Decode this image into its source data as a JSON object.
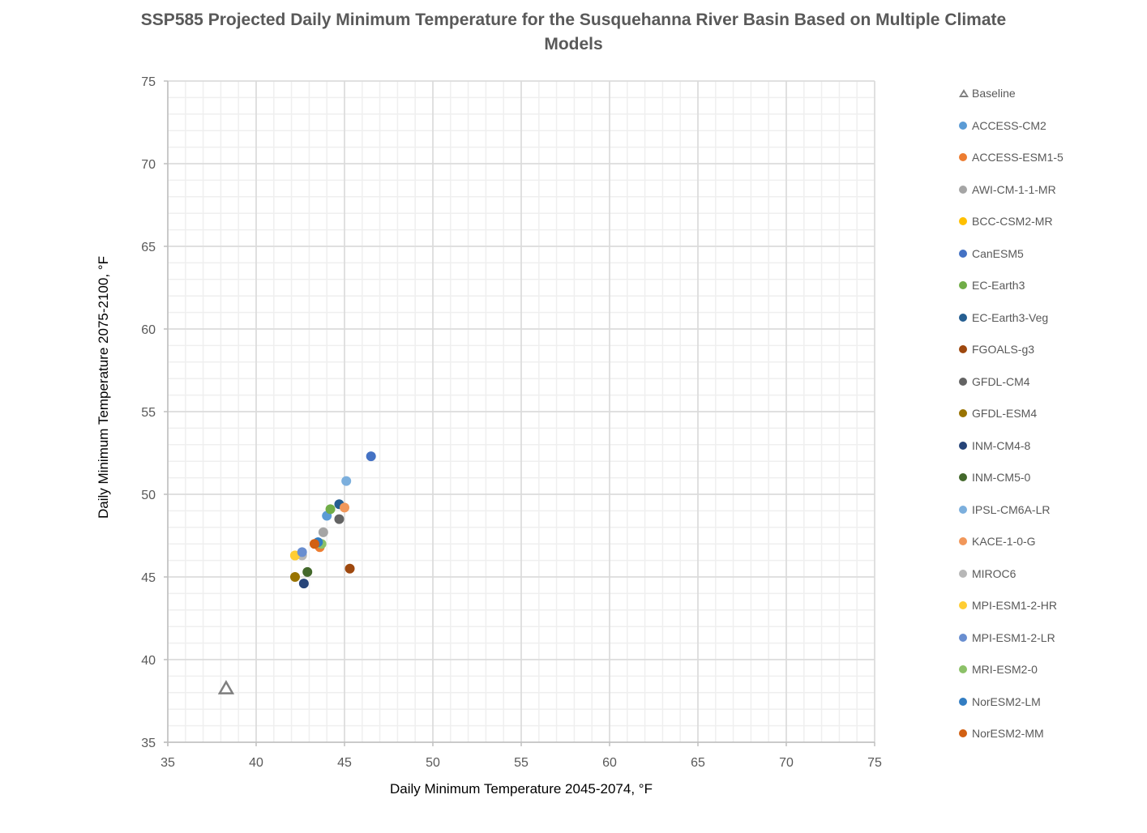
{
  "chart_data": {
    "type": "scatter",
    "title": "SSP585 Projected Daily Minimum Temperature for the Susquehanna River Basin Based on Multiple Climate Models",
    "xlabel": "Daily Minimum Temperature  2045-2074, °F",
    "ylabel": "Daily Minimum Temperature 2075-2100, °F",
    "xlim": [
      35,
      75
    ],
    "ylim": [
      35,
      75
    ],
    "x_ticks": [
      35,
      40,
      45,
      50,
      55,
      60,
      65,
      70,
      75
    ],
    "y_ticks": [
      35,
      40,
      45,
      50,
      55,
      60,
      65,
      70,
      75
    ],
    "grid": {
      "major": true,
      "minor": true,
      "minor_step": 1
    },
    "legend_position": "right",
    "series": [
      {
        "name": "Baseline",
        "marker": "triangle-open",
        "color": "#7f7f7f",
        "x": 38.3,
        "y": 38.3
      },
      {
        "name": "ACCESS-CM2",
        "marker": "circle",
        "color": "#5b9bd5",
        "x": 44.0,
        "y": 48.7
      },
      {
        "name": "ACCESS-ESM1-5",
        "marker": "circle",
        "color": "#ed7d31",
        "x": 43.6,
        "y": 46.8
      },
      {
        "name": "AWI-CM-1-1-MR",
        "marker": "circle",
        "color": "#a5a5a5",
        "x": 43.8,
        "y": 47.7
      },
      {
        "name": "BCC-CSM2-MR",
        "marker": "circle",
        "color": "#ffc000",
        "x": 42.2,
        "y": 46.3
      },
      {
        "name": "CanESM5",
        "marker": "circle",
        "color": "#4472c4",
        "x": 46.5,
        "y": 52.3
      },
      {
        "name": "EC-Earth3",
        "marker": "circle",
        "color": "#70ad47",
        "x": 44.2,
        "y": 49.1
      },
      {
        "name": "EC-Earth3-Veg",
        "marker": "circle",
        "color": "#255e91",
        "x": 44.7,
        "y": 49.4
      },
      {
        "name": "FGOALS-g3",
        "marker": "circle",
        "color": "#9e480e",
        "x": 45.3,
        "y": 45.5
      },
      {
        "name": "GFDL-CM4",
        "marker": "circle",
        "color": "#636363",
        "x": 44.7,
        "y": 48.5
      },
      {
        "name": "GFDL-ESM4",
        "marker": "circle",
        "color": "#997300",
        "x": 42.2,
        "y": 45.0
      },
      {
        "name": "INM-CM4-8",
        "marker": "circle",
        "color": "#264478",
        "x": 42.7,
        "y": 44.6
      },
      {
        "name": "INM-CM5-0",
        "marker": "circle",
        "color": "#43682b",
        "x": 42.9,
        "y": 45.3
      },
      {
        "name": "IPSL-CM6A-LR",
        "marker": "circle",
        "color": "#7cafdd",
        "x": 45.1,
        "y": 50.8
      },
      {
        "name": "KACE-1-0-G",
        "marker": "circle",
        "color": "#f1975a",
        "x": 45.0,
        "y": 49.2
      },
      {
        "name": "MIROC6",
        "marker": "circle",
        "color": "#b7b7b7",
        "x": 42.6,
        "y": 46.3
      },
      {
        "name": "MPI-ESM1-2-HR",
        "marker": "circle",
        "color": "#ffcd33",
        "x": 42.2,
        "y": 46.3
      },
      {
        "name": "MPI-ESM1-2-LR",
        "marker": "circle",
        "color": "#698ed0",
        "x": 42.6,
        "y": 46.5
      },
      {
        "name": "MRI-ESM2-0",
        "marker": "circle",
        "color": "#8cc168",
        "x": 43.7,
        "y": 47.0
      },
      {
        "name": "NorESM2-LM",
        "marker": "circle",
        "color": "#327dc2",
        "x": 43.5,
        "y": 47.1
      },
      {
        "name": "NorESM2-MM",
        "marker": "circle",
        "color": "#d26012",
        "x": 43.3,
        "y": 47.0
      }
    ]
  }
}
